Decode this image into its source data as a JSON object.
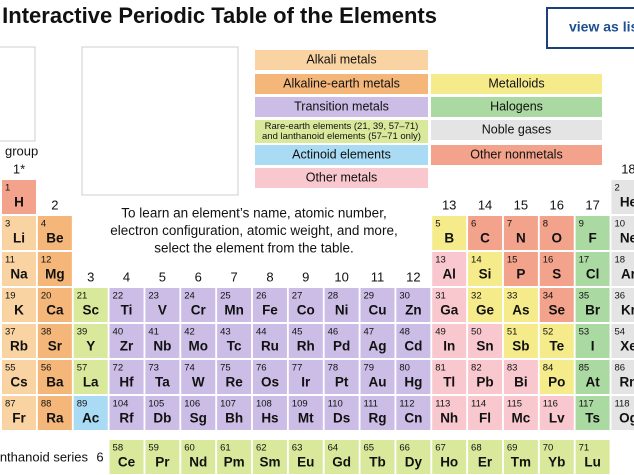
{
  "header": {
    "title": "Interactive Periodic Table of the Elements",
    "button": "view as list"
  },
  "legend": [
    {
      "label": [
        "Alkali metals"
      ],
      "color": "#f9d3a2"
    },
    {
      "label": [
        "Alkaline-earth metals"
      ],
      "color": "#f5b679"
    },
    {
      "label": [
        "Transition metals"
      ],
      "color": "#cbbde6"
    },
    {
      "label": [
        "Rare-earth elements (21, 39, 57–71)",
        "and lanthanoid elements (57–71 only)"
      ],
      "color": "#d9e99c"
    },
    {
      "label": [
        "Actinoid elements"
      ],
      "color": "#a9dbf4"
    },
    {
      "label": [
        "Other metals"
      ],
      "color": "#f9c8cf"
    },
    {
      "label": [
        "Metalloids"
      ],
      "color": "#f5eb8b"
    },
    {
      "label": [
        "Halogens"
      ],
      "color": "#aad9a2"
    },
    {
      "label": [
        "Noble gases"
      ],
      "color": "#e4e4e4"
    },
    {
      "label": [
        "Other nonmetals"
      ],
      "color": "#f3a38b"
    }
  ],
  "instructions": [
    "To learn an element’s name, atomic number,",
    "electron configuration, atomic weight, and more,",
    "select the element from the table."
  ],
  "groups": {
    "label": "group",
    "numbers": [
      "1*",
      2,
      3,
      4,
      5,
      6,
      7,
      8,
      9,
      10,
      11,
      12,
      13,
      14,
      15,
      16,
      17,
      18
    ]
  },
  "periods": [
    [
      {
        "number": 1,
        "symbol": "H",
        "color": "#f3a38b"
      },
      null,
      null,
      null,
      null,
      null,
      null,
      null,
      null,
      null,
      null,
      null,
      null,
      null,
      null,
      null,
      null,
      {
        "number": 2,
        "symbol": "He",
        "color": "#e4e4e4"
      }
    ],
    [
      {
        "number": 3,
        "symbol": "Li",
        "color": "#f9d3a2"
      },
      {
        "number": 4,
        "symbol": "Be",
        "color": "#f5b679"
      },
      null,
      null,
      null,
      null,
      null,
      null,
      null,
      null,
      null,
      null,
      {
        "number": 5,
        "symbol": "B",
        "color": "#f5eb8b"
      },
      {
        "number": 6,
        "symbol": "C",
        "color": "#f3a38b"
      },
      {
        "number": 7,
        "symbol": "N",
        "color": "#f3a38b"
      },
      {
        "number": 8,
        "symbol": "O",
        "color": "#f3a38b"
      },
      {
        "number": 9,
        "symbol": "F",
        "color": "#aad9a2"
      },
      {
        "number": 10,
        "symbol": "Ne",
        "color": "#e4e4e4"
      }
    ],
    [
      {
        "number": 11,
        "symbol": "Na",
        "color": "#f9d3a2"
      },
      {
        "number": 12,
        "symbol": "Mg",
        "color": "#f5b679"
      },
      null,
      null,
      null,
      null,
      null,
      null,
      null,
      null,
      null,
      null,
      {
        "number": 13,
        "symbol": "Al",
        "color": "#f9c8cf"
      },
      {
        "number": 14,
        "symbol": "Si",
        "color": "#f5eb8b"
      },
      {
        "number": 15,
        "symbol": "P",
        "color": "#f3a38b"
      },
      {
        "number": 16,
        "symbol": "S",
        "color": "#f3a38b"
      },
      {
        "number": 17,
        "symbol": "Cl",
        "color": "#aad9a2"
      },
      {
        "number": 18,
        "symbol": "Ar",
        "color": "#e4e4e4"
      }
    ],
    [
      {
        "number": 19,
        "symbol": "K",
        "color": "#f9d3a2"
      },
      {
        "number": 20,
        "symbol": "Ca",
        "color": "#f5b679"
      },
      {
        "number": 21,
        "symbol": "Sc",
        "color": "#d9e99c"
      },
      {
        "number": 22,
        "symbol": "Ti",
        "color": "#cbbde6"
      },
      {
        "number": 23,
        "symbol": "V",
        "color": "#cbbde6"
      },
      {
        "number": 24,
        "symbol": "Cr",
        "color": "#cbbde6"
      },
      {
        "number": 25,
        "symbol": "Mn",
        "color": "#cbbde6"
      },
      {
        "number": 26,
        "symbol": "Fe",
        "color": "#cbbde6"
      },
      {
        "number": 27,
        "symbol": "Co",
        "color": "#cbbde6"
      },
      {
        "number": 28,
        "symbol": "Ni",
        "color": "#cbbde6"
      },
      {
        "number": 29,
        "symbol": "Cu",
        "color": "#cbbde6"
      },
      {
        "number": 30,
        "symbol": "Zn",
        "color": "#cbbde6"
      },
      {
        "number": 31,
        "symbol": "Ga",
        "color": "#f9c8cf"
      },
      {
        "number": 32,
        "symbol": "Ge",
        "color": "#f5eb8b"
      },
      {
        "number": 33,
        "symbol": "As",
        "color": "#f5eb8b"
      },
      {
        "number": 34,
        "symbol": "Se",
        "color": "#f3a38b"
      },
      {
        "number": 35,
        "symbol": "Br",
        "color": "#aad9a2"
      },
      {
        "number": 36,
        "symbol": "Kr",
        "color": "#e4e4e4"
      }
    ],
    [
      {
        "number": 37,
        "symbol": "Rb",
        "color": "#f9d3a2"
      },
      {
        "number": 38,
        "symbol": "Sr",
        "color": "#f5b679"
      },
      {
        "number": 39,
        "symbol": "Y",
        "color": "#d9e99c"
      },
      {
        "number": 40,
        "symbol": "Zr",
        "color": "#cbbde6"
      },
      {
        "number": 41,
        "symbol": "Nb",
        "color": "#cbbde6"
      },
      {
        "number": 42,
        "symbol": "Mo",
        "color": "#cbbde6"
      },
      {
        "number": 43,
        "symbol": "Tc",
        "color": "#cbbde6"
      },
      {
        "number": 44,
        "symbol": "Ru",
        "color": "#cbbde6"
      },
      {
        "number": 45,
        "symbol": "Rh",
        "color": "#cbbde6"
      },
      {
        "number": 46,
        "symbol": "Pd",
        "color": "#cbbde6"
      },
      {
        "number": 47,
        "symbol": "Ag",
        "color": "#cbbde6"
      },
      {
        "number": 48,
        "symbol": "Cd",
        "color": "#cbbde6"
      },
      {
        "number": 49,
        "symbol": "In",
        "color": "#f9c8cf"
      },
      {
        "number": 50,
        "symbol": "Sn",
        "color": "#f9c8cf"
      },
      {
        "number": 51,
        "symbol": "Sb",
        "color": "#f5eb8b"
      },
      {
        "number": 52,
        "symbol": "Te",
        "color": "#f5eb8b"
      },
      {
        "number": 53,
        "symbol": "I",
        "color": "#aad9a2"
      },
      {
        "number": 54,
        "symbol": "Xe",
        "color": "#e4e4e4"
      }
    ],
    [
      {
        "number": 55,
        "symbol": "Cs",
        "color": "#f9d3a2"
      },
      {
        "number": 56,
        "symbol": "Ba",
        "color": "#f5b679"
      },
      {
        "number": 57,
        "symbol": "La",
        "color": "#d9e99c"
      },
      {
        "number": 72,
        "symbol": "Hf",
        "color": "#cbbde6"
      },
      {
        "number": 73,
        "symbol": "Ta",
        "color": "#cbbde6"
      },
      {
        "number": 74,
        "symbol": "W",
        "color": "#cbbde6"
      },
      {
        "number": 75,
        "symbol": "Re",
        "color": "#cbbde6"
      },
      {
        "number": 76,
        "symbol": "Os",
        "color": "#cbbde6"
      },
      {
        "number": 77,
        "symbol": "Ir",
        "color": "#cbbde6"
      },
      {
        "number": 78,
        "symbol": "Pt",
        "color": "#cbbde6"
      },
      {
        "number": 79,
        "symbol": "Au",
        "color": "#cbbde6"
      },
      {
        "number": 80,
        "symbol": "Hg",
        "color": "#cbbde6"
      },
      {
        "number": 81,
        "symbol": "Tl",
        "color": "#f9c8cf"
      },
      {
        "number": 82,
        "symbol": "Pb",
        "color": "#f9c8cf"
      },
      {
        "number": 83,
        "symbol": "Bi",
        "color": "#f9c8cf"
      },
      {
        "number": 84,
        "symbol": "Po",
        "color": "#f5eb8b"
      },
      {
        "number": 85,
        "symbol": "At",
        "color": "#aad9a2"
      },
      {
        "number": 86,
        "symbol": "Rn",
        "color": "#e4e4e4"
      }
    ],
    [
      {
        "number": 87,
        "symbol": "Fr",
        "color": "#f9d3a2"
      },
      {
        "number": 88,
        "symbol": "Ra",
        "color": "#f5b679"
      },
      {
        "number": 89,
        "symbol": "Ac",
        "color": "#a9dbf4"
      },
      {
        "number": 104,
        "symbol": "Rf",
        "color": "#cbbde6"
      },
      {
        "number": 105,
        "symbol": "Db",
        "color": "#cbbde6"
      },
      {
        "number": 106,
        "symbol": "Sg",
        "color": "#cbbde6"
      },
      {
        "number": 107,
        "symbol": "Bh",
        "color": "#cbbde6"
      },
      {
        "number": 108,
        "symbol": "Hs",
        "color": "#cbbde6"
      },
      {
        "number": 109,
        "symbol": "Mt",
        "color": "#cbbde6"
      },
      {
        "number": 110,
        "symbol": "Ds",
        "color": "#cbbde6"
      },
      {
        "number": 111,
        "symbol": "Rg",
        "color": "#cbbde6"
      },
      {
        "number": 112,
        "symbol": "Cn",
        "color": "#cbbde6"
      },
      {
        "number": 113,
        "symbol": "Nh",
        "color": "#f9c8cf"
      },
      {
        "number": 114,
        "symbol": "Fl",
        "color": "#f9c8cf"
      },
      {
        "number": 115,
        "symbol": "Mc",
        "color": "#f9c8cf"
      },
      {
        "number": 116,
        "symbol": "Lv",
        "color": "#f9c8cf"
      },
      {
        "number": 117,
        "symbol": "Ts",
        "color": "#aad9a2"
      },
      {
        "number": 118,
        "symbol": "Og",
        "color": "#e4e4e4"
      }
    ]
  ],
  "lanthanoid": {
    "label": "lanthanoid series",
    "period": 6,
    "cells": [
      null,
      null,
      null,
      {
        "number": 58,
        "symbol": "Ce",
        "color": "#d9e99c"
      },
      {
        "number": 59,
        "symbol": "Pr",
        "color": "#d9e99c"
      },
      {
        "number": 60,
        "symbol": "Nd",
        "color": "#d9e99c"
      },
      {
        "number": 61,
        "symbol": "Pm",
        "color": "#d9e99c"
      },
      {
        "number": 62,
        "symbol": "Sm",
        "color": "#d9e99c"
      },
      {
        "number": 63,
        "symbol": "Eu",
        "color": "#d9e99c"
      },
      {
        "number": 64,
        "symbol": "Gd",
        "color": "#d9e99c"
      },
      {
        "number": 65,
        "symbol": "Tb",
        "color": "#d9e99c"
      },
      {
        "number": 66,
        "symbol": "Dy",
        "color": "#d9e99c"
      },
      {
        "number": 67,
        "symbol": "Ho",
        "color": "#d9e99c"
      },
      {
        "number": 68,
        "symbol": "Er",
        "color": "#d9e99c"
      },
      {
        "number": 69,
        "symbol": "Tm",
        "color": "#d9e99c"
      },
      {
        "number": 70,
        "symbol": "Yb",
        "color": "#d9e99c"
      },
      {
        "number": 71,
        "symbol": "Lu",
        "color": "#d9e99c"
      }
    ]
  }
}
